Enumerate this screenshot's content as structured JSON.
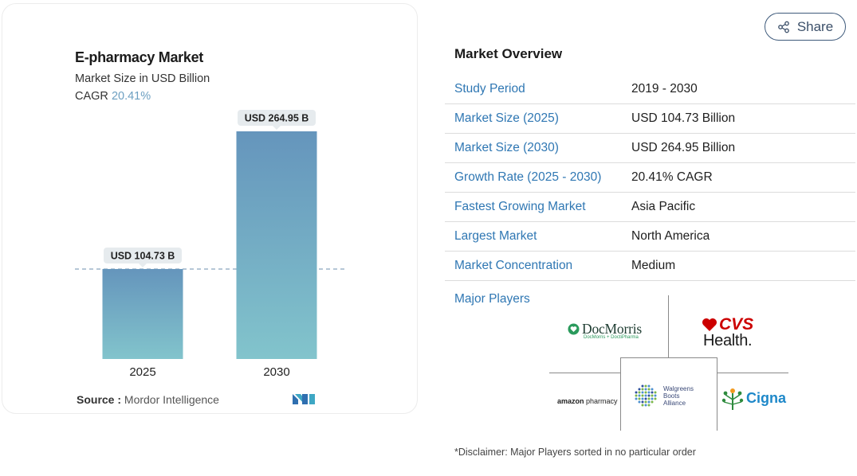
{
  "chart_data": {
    "type": "bar",
    "title": "E-pharmacy Market",
    "subtitle": "Market Size in USD Billion",
    "cagr_label": "CAGR",
    "cagr_value": "20.41%",
    "categories": [
      "2025",
      "2030"
    ],
    "values": [
      104.73,
      264.95
    ],
    "value_labels": [
      "USD 104.73 B",
      "USD 264.95 B"
    ],
    "reference_line_value": 104.73,
    "grid": false,
    "legend": "none",
    "colors": {
      "bar_top": "#6595bc",
      "bar_bottom": "#82c4cc",
      "label_bg": "#e6ebee",
      "ref_line": "#6d8fad"
    }
  },
  "source": {
    "label": "Source :",
    "value": "Mordor Intelligence"
  },
  "share": {
    "label": "Share"
  },
  "overview": {
    "title": "Market Overview",
    "rows": [
      {
        "key": "Study Period",
        "value": "2019 - 2030"
      },
      {
        "key": "Market Size (2025)",
        "value": "USD 104.73 Billion"
      },
      {
        "key": "Market Size (2030)",
        "value": "USD 264.95 Billion"
      },
      {
        "key": "Growth Rate (2025 - 2030)",
        "value": "20.41% CAGR"
      },
      {
        "key": "Fastest Growing Market",
        "value": "Asia Pacific"
      },
      {
        "key": "Largest Market",
        "value": "North America"
      },
      {
        "key": "Market Concentration",
        "value": "Medium"
      }
    ],
    "players_label": "Major Players",
    "players": {
      "docmorris": {
        "name": "DocMorris",
        "sub": "DocMorris + DoctiPharma"
      },
      "cvs": {
        "top": "CVS",
        "bottom": "Health."
      },
      "amazon": {
        "brand": "amazon",
        "suffix": " pharmacy"
      },
      "wba": {
        "line1": "Walgreens",
        "line2": "Boots",
        "line3": "Alliance"
      },
      "cigna": {
        "name": "Cigna"
      }
    },
    "disclaimer": "*Disclaimer: Major Players sorted in no particular order"
  }
}
